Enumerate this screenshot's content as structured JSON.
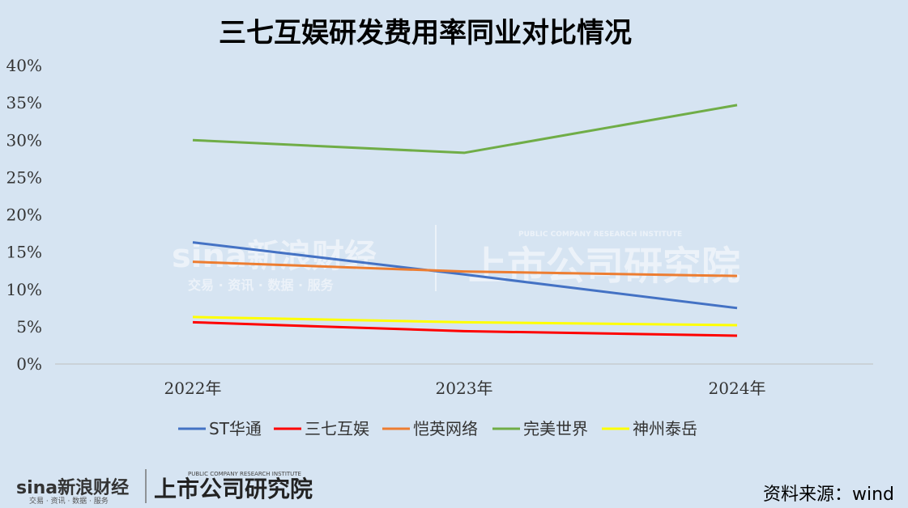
{
  "chart_data": {
    "type": "line",
    "title": "三七互娱研发费用率同业对比情况",
    "categories": [
      "2022年",
      "2023年",
      "2024年"
    ],
    "yticks": [
      "0%",
      "5%",
      "10%",
      "15%",
      "20%",
      "25%",
      "30%",
      "35%",
      "40%"
    ],
    "ylim": [
      0,
      40
    ],
    "grid": false,
    "legend_position": "bottom",
    "series": [
      {
        "name": "ST华通",
        "color": "#4472c4",
        "values": [
          16.3,
          12.0,
          7.5
        ]
      },
      {
        "name": "三七互娱",
        "color": "#ff0000",
        "values": [
          5.6,
          4.4,
          3.8
        ]
      },
      {
        "name": "恺英网络",
        "color": "#ed7d31",
        "values": [
          13.7,
          12.4,
          11.8
        ]
      },
      {
        "name": "完美世界",
        "color": "#70ad47",
        "values": [
          30.0,
          28.3,
          34.7
        ]
      },
      {
        "name": "神州泰岳",
        "color": "#ffff00",
        "values": [
          6.3,
          5.6,
          5.2
        ]
      }
    ]
  },
  "footer": {
    "logo_sina": "sina新浪财经",
    "logo_sina_sub": "交易 · 资讯 · 数据 · 服务",
    "logo_institute": "上市公司研究院",
    "logo_institute_sub": "PUBLIC COMPANY RESEARCH INSTITUTE",
    "source": "资料来源：wind"
  }
}
